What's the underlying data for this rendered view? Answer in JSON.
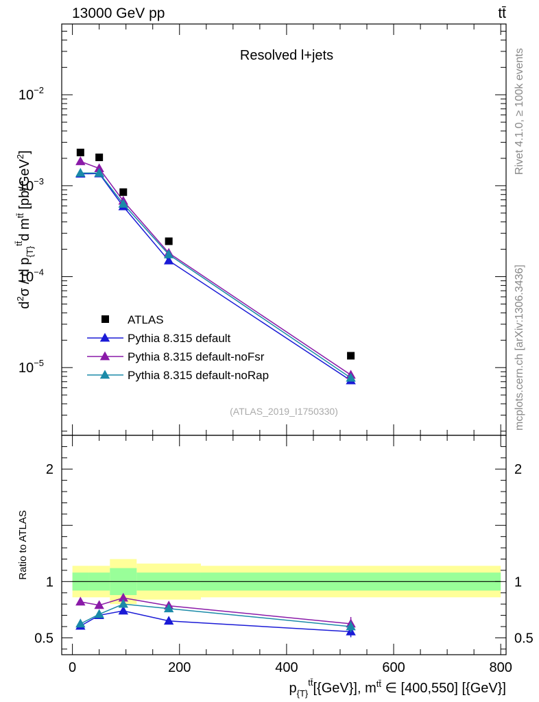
{
  "header": {
    "left": "13000 GeV pp",
    "right": "tt̄"
  },
  "side_text": {
    "rivet": "Rivet 4.1.0, ≥ 100k events",
    "site": "mcplots.cern.ch [arXiv:1306.3436]"
  },
  "chart_data": {
    "type": "line",
    "title": "Resolved l+jets",
    "analysis_label": "(ATLAS_2019_I1750330)",
    "ylabel": "d²σ / d p_{T}^{tt̄}d m^{tt̄} [pb/GeV²]",
    "ratio_ylabel": "Ratio to ATLAS",
    "xlabel": "p_{T}^{tt̄}[{GeV}], m^{tt̄} ∈ [400,550] [{GeV}]",
    "xlim": [
      -20,
      810
    ],
    "ylim": [
      1.8e-06,
      0.06
    ],
    "ratio_ylim": [
      0.35,
      2.3
    ],
    "x_ticks": [
      {
        "value": 0,
        "label": "0"
      },
      {
        "value": 200,
        "label": "200"
      },
      {
        "value": 400,
        "label": "400"
      },
      {
        "value": 600,
        "label": "600"
      },
      {
        "value": 800,
        "label": "800"
      }
    ],
    "y_ticks": [
      {
        "value": 1e-05,
        "base": "10",
        "exp": "−5"
      },
      {
        "value": 0.0001,
        "base": "10",
        "exp": "−4"
      },
      {
        "value": 0.001,
        "base": "10",
        "exp": "−3"
      },
      {
        "value": 0.01,
        "base": "10",
        "exp": "−2"
      }
    ],
    "ratio_ticks": [
      {
        "value": 0.5,
        "label": "0.5"
      },
      {
        "value": 1,
        "label": "1"
      },
      {
        "value": 2,
        "label": "2"
      }
    ],
    "bins": [
      {
        "low": 0,
        "high": 30,
        "center": 15
      },
      {
        "low": 30,
        "high": 70,
        "center": 50
      },
      {
        "low": 70,
        "high": 120,
        "center": 95
      },
      {
        "low": 120,
        "high": 240,
        "center": 180
      },
      {
        "low": 240,
        "high": 800,
        "center": 520
      }
    ],
    "data": {
      "name": "ATLAS",
      "values": [
        0.00232,
        0.00205,
        0.00085,
        0.000245,
        1.35e-05
      ],
      "band_inner": [
        0.08,
        0.08,
        0.12,
        0.08,
        0.08
      ],
      "band_outer": [
        0.14,
        0.14,
        0.2,
        0.16,
        0.14
      ]
    },
    "series": [
      {
        "name": "Pythia 8.315 default",
        "color": "#1a1ad6",
        "values": [
          0.00135,
          0.00136,
          0.00059,
          0.00015,
          7.2e-06
        ],
        "ratio": [
          0.605,
          0.7,
          0.74,
          0.65,
          0.555
        ],
        "ratio_err": [
          0.02,
          0.02,
          0.025,
          0.03,
          0.05
        ]
      },
      {
        "name": "Pythia 8.315 default-noFsr",
        "color": "#8a1aa8",
        "values": [
          0.00185,
          0.00155,
          0.00068,
          0.000182,
          8.3e-06
        ],
        "ratio": [
          0.82,
          0.79,
          0.855,
          0.785,
          0.625
        ],
        "ratio_err": [
          0.02,
          0.02,
          0.025,
          0.03,
          0.06
        ]
      },
      {
        "name": "Pythia 8.315 default-noRap",
        "color": "#1a8aa8",
        "values": [
          0.00138,
          0.00138,
          0.00063,
          0.000175,
          7.7e-06
        ],
        "ratio": [
          0.625,
          0.71,
          0.8,
          0.76,
          0.6
        ],
        "ratio_err": [
          0.02,
          0.02,
          0.025,
          0.03,
          0.05
        ]
      }
    ],
    "legend_position": "lower-left"
  }
}
